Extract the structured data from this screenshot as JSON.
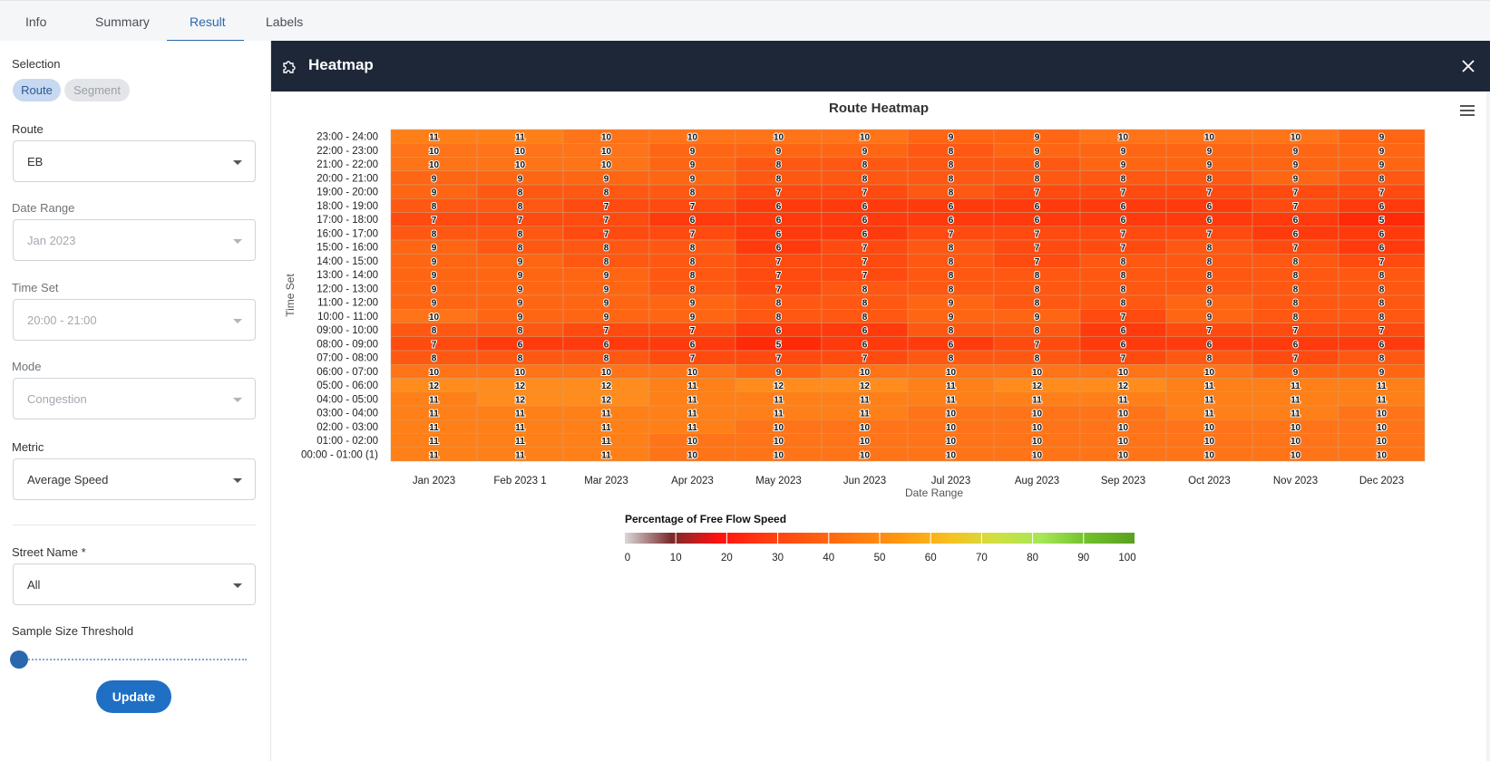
{
  "tabs": [
    {
      "label": "Info"
    },
    {
      "label": "Summary"
    },
    {
      "label": "Result"
    },
    {
      "label": "Labels"
    }
  ],
  "active_tab": "Result",
  "sidebar": {
    "selection_label": "Selection",
    "selection_options": [
      "Route",
      "Segment"
    ],
    "route_label": "Route",
    "route_value": "EB",
    "date_range_label": "Date Range",
    "date_range_value": "Jan 2023",
    "time_set_label": "Time Set",
    "time_set_value": "20:00 - 21:00",
    "mode_label": "Mode",
    "mode_value": "Congestion",
    "metric_label": "Metric",
    "metric_value": "Average Speed",
    "street_label": "Street Name *",
    "street_value": "All",
    "threshold_label": "Sample Size Threshold",
    "threshold_value": 0,
    "update_label": "Update"
  },
  "panel": {
    "title": "Heatmap"
  },
  "colors": {
    "header_bg": "#1e2738",
    "accent": "#2a68ad",
    "button": "#1f6fc5"
  },
  "chart_data": {
    "type": "heatmap",
    "title": "Route Heatmap",
    "xlabel": "Date Range",
    "ylabel": "Time Set",
    "x": [
      "Jan 2023",
      "Feb 2023 1",
      "Mar 2023",
      "Apr 2023",
      "May 2023",
      "Jun 2023",
      "Jul 2023",
      "Aug 2023",
      "Sep 2023",
      "Oct 2023",
      "Nov 2023",
      "Dec 2023"
    ],
    "y": [
      "23:00 - 24:00",
      "22:00 - 23:00",
      "21:00 - 22:00",
      "20:00 - 21:00",
      "19:00 - 20:00",
      "18:00 - 19:00",
      "17:00 - 18:00",
      "16:00 - 17:00",
      "15:00 - 16:00",
      "14:00 - 15:00",
      "13:00 - 14:00",
      "12:00 - 13:00",
      "11:00 - 12:00",
      "10:00 - 11:00",
      "09:00 - 10:00",
      "08:00 - 09:00",
      "07:00 - 08:00",
      "06:00 - 07:00",
      "05:00 - 06:00",
      "04:00 - 05:00",
      "03:00 - 04:00",
      "02:00 - 03:00",
      "01:00 - 02:00",
      "00:00 - 01:00 (1)"
    ],
    "values": [
      [
        11,
        11,
        10,
        10,
        10,
        10,
        9,
        9,
        10,
        10,
        10,
        9
      ],
      [
        10,
        10,
        10,
        9,
        9,
        9,
        8,
        9,
        9,
        9,
        9,
        9
      ],
      [
        10,
        10,
        10,
        9,
        8,
        8,
        8,
        8,
        9,
        9,
        9,
        9
      ],
      [
        9,
        9,
        9,
        9,
        8,
        8,
        8,
        8,
        8,
        8,
        9,
        8
      ],
      [
        9,
        8,
        8,
        8,
        7,
        7,
        8,
        7,
        7,
        7,
        7,
        7
      ],
      [
        8,
        8,
        7,
        7,
        6,
        6,
        6,
        6,
        6,
        6,
        7,
        6
      ],
      [
        7,
        7,
        7,
        6,
        6,
        6,
        6,
        6,
        6,
        6,
        6,
        5
      ],
      [
        8,
        8,
        7,
        7,
        6,
        6,
        7,
        7,
        7,
        7,
        6,
        6
      ],
      [
        9,
        8,
        8,
        8,
        6,
        7,
        8,
        7,
        7,
        8,
        7,
        6
      ],
      [
        9,
        9,
        8,
        8,
        7,
        7,
        8,
        7,
        8,
        8,
        8,
        7
      ],
      [
        9,
        9,
        9,
        8,
        7,
        7,
        8,
        8,
        8,
        8,
        8,
        8
      ],
      [
        9,
        9,
        9,
        8,
        7,
        8,
        8,
        8,
        8,
        8,
        8,
        8
      ],
      [
        9,
        9,
        9,
        9,
        8,
        8,
        9,
        8,
        8,
        9,
        8,
        8
      ],
      [
        10,
        9,
        9,
        9,
        8,
        8,
        9,
        9,
        7,
        9,
        8,
        8
      ],
      [
        8,
        8,
        7,
        7,
        6,
        6,
        8,
        8,
        6,
        7,
        7,
        7
      ],
      [
        7,
        6,
        6,
        6,
        5,
        6,
        6,
        7,
        6,
        6,
        6,
        6
      ],
      [
        8,
        8,
        8,
        7,
        7,
        7,
        8,
        8,
        7,
        8,
        7,
        8
      ],
      [
        10,
        10,
        10,
        10,
        9,
        10,
        10,
        10,
        10,
        10,
        9,
        9
      ],
      [
        12,
        12,
        12,
        11,
        12,
        12,
        11,
        12,
        12,
        11,
        11,
        11
      ],
      [
        11,
        12,
        12,
        11,
        11,
        11,
        11,
        11,
        11,
        11,
        11,
        11
      ],
      [
        11,
        11,
        11,
        11,
        11,
        11,
        10,
        10,
        10,
        11,
        11,
        10
      ],
      [
        11,
        11,
        11,
        11,
        10,
        10,
        10,
        10,
        10,
        10,
        10,
        10
      ],
      [
        11,
        11,
        11,
        10,
        10,
        10,
        10,
        10,
        10,
        10,
        10,
        10
      ],
      [
        11,
        11,
        11,
        10,
        10,
        10,
        10,
        10,
        10,
        10,
        10,
        10
      ]
    ],
    "color_axis": {
      "title": "Percentage of Free Flow Speed",
      "min": 0,
      "max": 100,
      "ticks": [
        "0",
        "10",
        "20",
        "30",
        "40",
        "50",
        "60",
        "70",
        "80",
        "90",
        "100"
      ],
      "stops": [
        "#d9d9d9",
        "#7a2b2b",
        "#ff1010",
        "#ff3a10",
        "#ff5a10",
        "#ff7a10",
        "#ff9a10",
        "#f7c020",
        "#cfe040",
        "#a6e655",
        "#6fc02a",
        "#5aa020"
      ]
    },
    "legend": "bottom-center",
    "grid": false
  }
}
